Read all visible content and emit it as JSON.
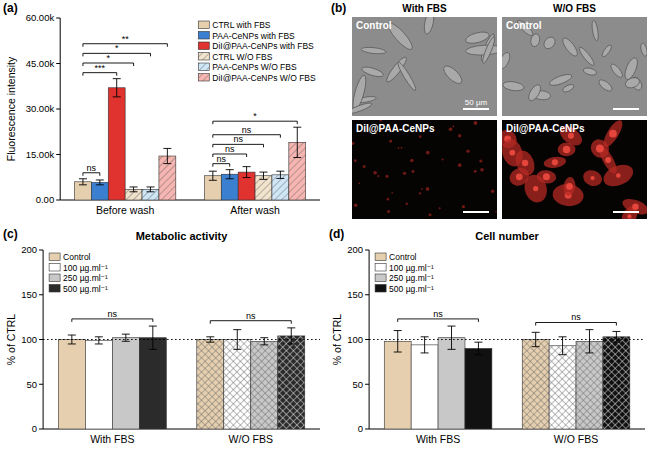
{
  "chart_data": [
    {
      "type": "bar",
      "panel_label": "(a)",
      "y_label": "Fluorescence intensity",
      "categories": [
        "Before wash",
        "After wash"
      ],
      "series": [
        {
          "name": "CTRL with FBS",
          "color": "#e6cfae",
          "values": [
            6000,
            8000
          ],
          "errors": [
            1000,
            1500
          ]
        },
        {
          "name": "PAA-CeNPs with FBS",
          "color": "#3a7fd0",
          "values": [
            5800,
            8500
          ],
          "errors": [
            800,
            1500
          ]
        },
        {
          "name": "DiI@PAA-CeNPs with FBS",
          "color": "#e0322e",
          "values": [
            37000,
            9200
          ],
          "errors": [
            3000,
            1800
          ]
        },
        {
          "name": "CTRL W/O FBS",
          "color": "#f2e3cc",
          "values": [
            3500,
            8000
          ],
          "errors": [
            800,
            1200
          ]
        },
        {
          "name": "PAA-CeNPs W/O FBS",
          "color": "#cfe6f7",
          "values": [
            3500,
            8300
          ],
          "errors": [
            800,
            1200
          ]
        },
        {
          "name": "DiI@PAA-CeNPs W/O FBS",
          "color": "#f6b5b0",
          "values": [
            14500,
            19000
          ],
          "errors": [
            2500,
            5000
          ]
        }
      ],
      "ylim": [
        0,
        60000
      ],
      "yticks": [
        {
          "value": 0,
          "label": "0.00"
        },
        {
          "value": 15000,
          "label": "15.00k"
        },
        {
          "value": 30000,
          "label": "30.00k"
        },
        {
          "value": 45000,
          "label": "45.00k"
        },
        {
          "value": 60000,
          "label": "60.00k"
        }
      ],
      "legend": "top-right",
      "annotations": [
        {
          "category": 0,
          "from": 0,
          "to": 1,
          "label": "ns"
        },
        {
          "category": 0,
          "from": 0,
          "to": 2,
          "label": "***"
        },
        {
          "category": 0,
          "from": 0,
          "to": 3,
          "label": "*"
        },
        {
          "category": 0,
          "from": 0,
          "to": 4,
          "label": "*"
        },
        {
          "category": 0,
          "from": 0,
          "to": 5,
          "label": "**"
        },
        {
          "category": 1,
          "from": 0,
          "to": 1,
          "label": "ns"
        },
        {
          "category": 1,
          "from": 0,
          "to": 2,
          "label": "ns"
        },
        {
          "category": 1,
          "from": 0,
          "to": 3,
          "label": "ns"
        },
        {
          "category": 1,
          "from": 0,
          "to": 4,
          "label": "ns"
        },
        {
          "category": 1,
          "from": 0,
          "to": 5,
          "label": "*"
        }
      ]
    },
    {
      "type": "bar",
      "panel_label": "(c)",
      "title": "Metabolic activity",
      "y_label": "% of CTRL",
      "categories": [
        "With FBS",
        "W/O FBS"
      ],
      "series": [
        {
          "name": "Control",
          "color": "#e6cfae",
          "values": [
            100,
            100
          ],
          "errors": [
            5,
            3
          ]
        },
        {
          "name": "100 µg.ml⁻¹",
          "color": "#ffffff",
          "values": [
            99,
            100
          ],
          "errors": [
            4,
            11
          ]
        },
        {
          "name": "250 µg.ml⁻¹",
          "color": "#c8c8c8",
          "values": [
            102,
            98
          ],
          "errors": [
            4,
            4
          ]
        },
        {
          "name": "500 µg.ml⁻¹",
          "color": "#2b2b2b",
          "values": [
            102,
            104
          ],
          "errors": [
            13,
            9
          ]
        }
      ],
      "ylim": [
        0,
        200
      ],
      "yticks": [
        0,
        50,
        100,
        150,
        200
      ],
      "reference_line": 100,
      "legend": "top-left",
      "annotations": [
        {
          "category": 0,
          "from": 0,
          "to": 3,
          "label": "ns"
        },
        {
          "category": 1,
          "from": 0,
          "to": 3,
          "label": "ns"
        }
      ]
    },
    {
      "type": "bar",
      "panel_label": "(d)",
      "title": "Cell number",
      "y_label": "% of CTRL",
      "categories": [
        "With FBS",
        "W/O FBS"
      ],
      "series": [
        {
          "name": "Control",
          "color": "#e6cfae",
          "values": [
            98,
            100
          ],
          "errors": [
            12,
            8
          ]
        },
        {
          "name": "100 µg.ml⁻¹",
          "color": "#ffffff",
          "values": [
            94,
            93
          ],
          "errors": [
            9,
            10
          ]
        },
        {
          "name": "250 µg.ml⁻¹",
          "color": "#c8c8c8",
          "values": [
            102,
            98
          ],
          "errors": [
            13,
            13
          ]
        },
        {
          "name": "500 µg.ml⁻¹",
          "color": "#111111",
          "values": [
            90,
            103
          ],
          "errors": [
            7,
            6
          ]
        }
      ],
      "ylim": [
        0,
        200
      ],
      "yticks": [
        0,
        50,
        100,
        150,
        200
      ],
      "reference_line": 100,
      "legend": "top-left",
      "annotations": [
        {
          "category": 0,
          "from": 0,
          "to": 3,
          "label": "ns"
        },
        {
          "category": 1,
          "from": 0,
          "to": 3,
          "label": "ns"
        }
      ]
    }
  ],
  "images": {
    "panel_label": "(b)",
    "columns": [
      "With FBS",
      "W/O FBS"
    ],
    "rows": [
      [
        {
          "label": "Control",
          "scale_bar": "50 µm"
        },
        {
          "label": "Control"
        }
      ],
      [
        {
          "label": "DiI@PAA-CeNPs"
        },
        {
          "label": "DiI@PAA-CeNPs"
        }
      ]
    ]
  }
}
